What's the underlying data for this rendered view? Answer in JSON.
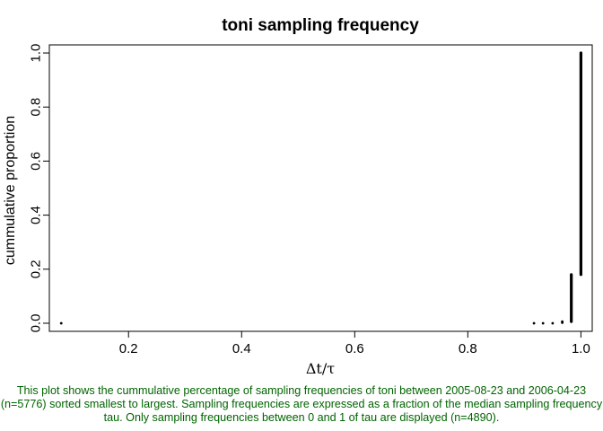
{
  "chart_data": {
    "type": "scatter",
    "title": "toni sampling frequency",
    "xlabel": "Δt/τ",
    "ylabel": "cummulative proportion",
    "xlim": [
      0.06,
      1.02
    ],
    "ylim": [
      -0.03,
      1.03
    ],
    "x_ticks": [
      0.2,
      0.4,
      0.6,
      0.8,
      1.0
    ],
    "x_tick_labels": [
      "0.2",
      "0.4",
      "0.6",
      "0.8",
      "1.0"
    ],
    "y_ticks": [
      0.0,
      0.2,
      0.4,
      0.6,
      0.8,
      1.0
    ],
    "y_tick_labels": [
      "0.0",
      "0.2",
      "0.4",
      "0.6",
      "0.8",
      "1.0"
    ],
    "grid": false,
    "point_color": "#000000",
    "points": [
      {
        "x": 0.081,
        "y": 0.0
      },
      {
        "x": 0.917,
        "y": 0.0
      },
      {
        "x": 0.933,
        "y": 0.0
      },
      {
        "x": 0.95,
        "y": 0.0
      },
      {
        "x": 0.967,
        "y": 0.002
      },
      {
        "x": 0.967,
        "y": 0.006
      }
    ],
    "vertical_runs": [
      {
        "x": 0.983,
        "y_start": 0.006,
        "y_end": 0.18
      },
      {
        "x": 1.0,
        "y_start": 0.18,
        "y_end": 1.0
      }
    ]
  },
  "caption": "This plot shows the cummulative percentage of sampling frequencies of toni between 2005-08-23 and 2006-04-23 (n=5776) sorted smallest to largest. Sampling frequencies are expressed as a fraction of the median sampling frequency tau. Only sampling frequencies between 0 and 1 of tau are displayed (n=4890).",
  "caption_color": "#006400"
}
